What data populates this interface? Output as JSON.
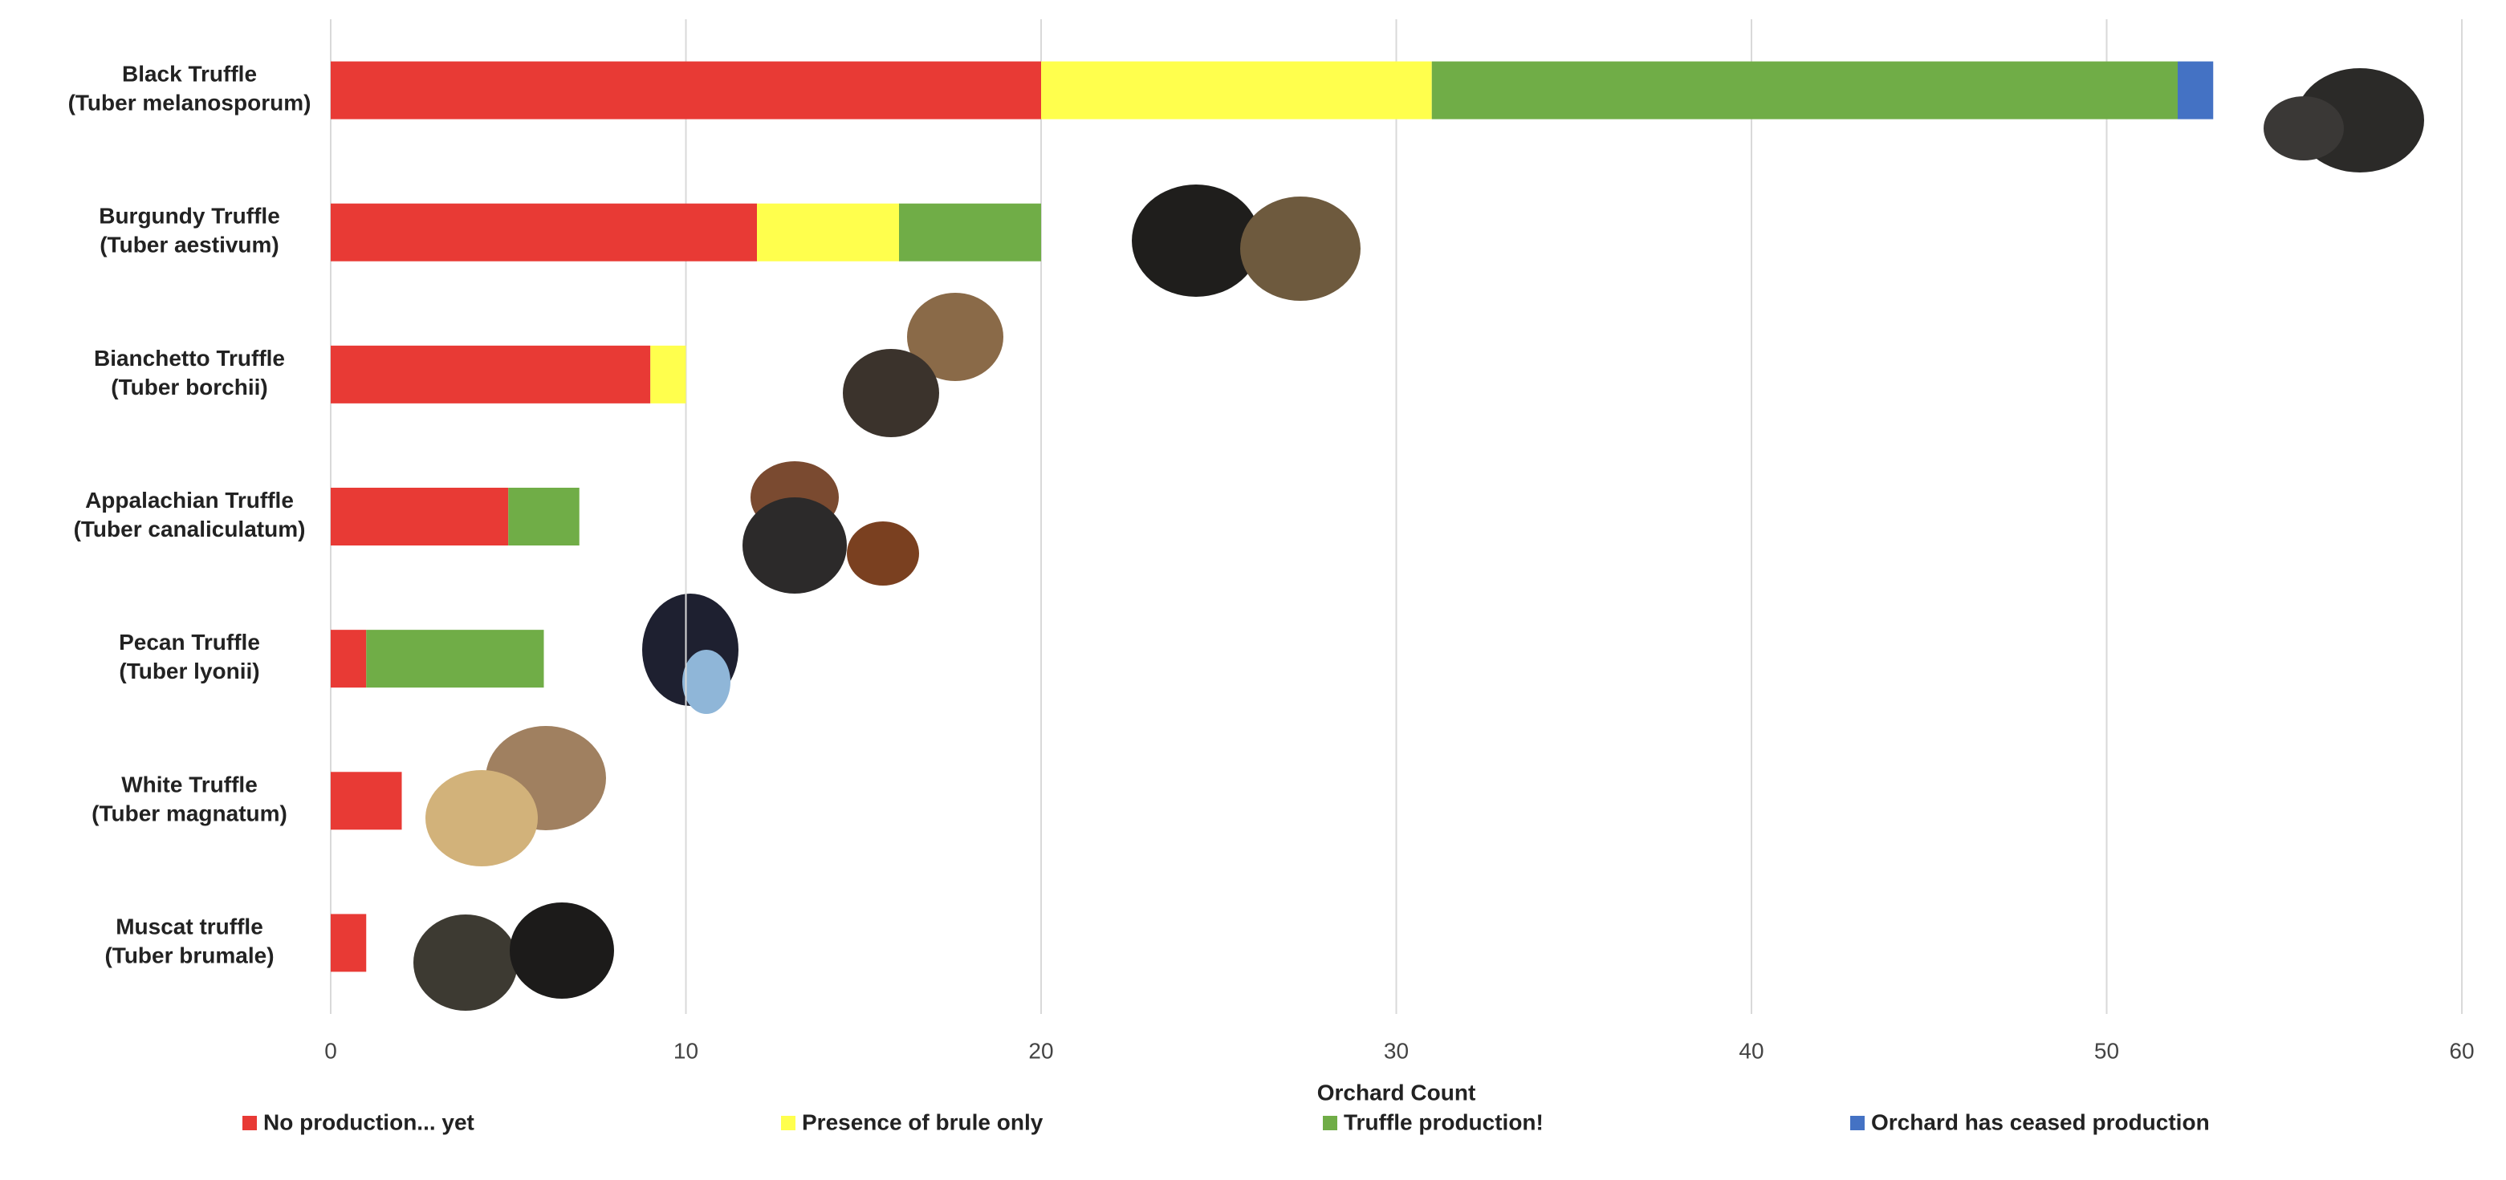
{
  "chart_data": {
    "type": "stacked-barh",
    "xlabel": "Orchard Count",
    "categories": [
      "Black Truffle (Tuber melanosporum)",
      "Burgundy Truffle (Tuber aestivum)",
      "Bianchetto Truffle (Tuber borchii)",
      "Appalachian Truffle (Tuber canaliculatum)",
      "Pecan Truffle (Tuber lyonii)",
      "White Truffle (Tuber magnatum)",
      "Muscat truffle (Tuber brumale)"
    ],
    "series": [
      {
        "name": "No production... yet",
        "color": "#e83a35",
        "values": [
          20,
          12,
          9,
          5,
          1,
          2,
          1
        ]
      },
      {
        "name": "Presence of brule only",
        "color": "#ffff4d",
        "values": [
          11,
          4,
          1,
          0,
          0,
          0,
          0
        ]
      },
      {
        "name": "Truffle production!",
        "color": "#70ad47",
        "values": [
          21,
          4,
          0,
          2,
          5,
          0,
          0
        ]
      },
      {
        "name": "Orchard has ceased production",
        "color": "#4472c4",
        "values": [
          1,
          0,
          0,
          0,
          0,
          0,
          0
        ]
      }
    ],
    "xlim": [
      0,
      60
    ],
    "xticks": [
      0,
      10,
      20,
      30,
      40,
      50,
      60
    ],
    "grid": true,
    "legend": "bottom"
  }
}
